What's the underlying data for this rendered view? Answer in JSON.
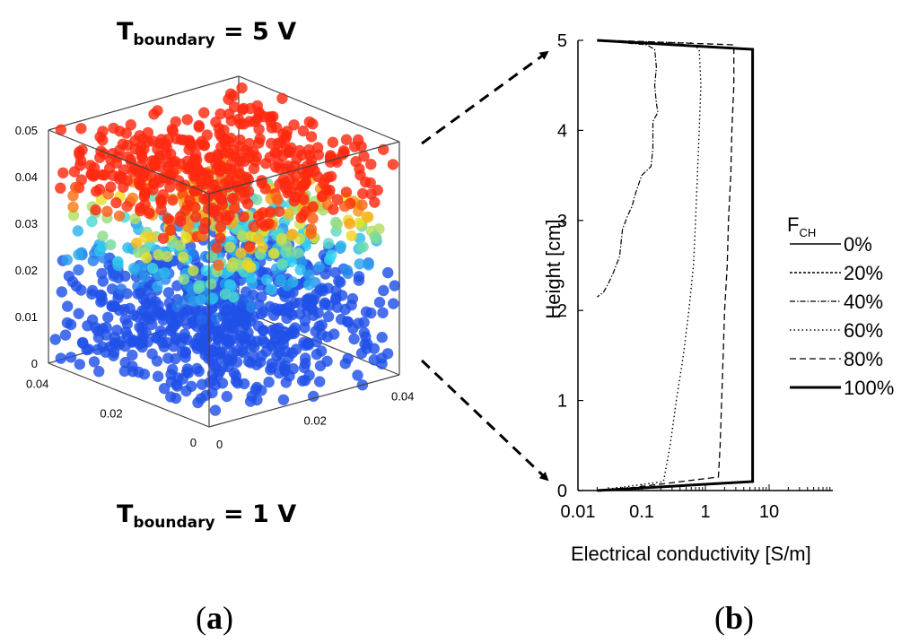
{
  "panel_a": {
    "label": "a",
    "top_boundary": {
      "symbol": "T",
      "subscript": "boundary",
      "value": "= 5 V"
    },
    "bottom_boundary": {
      "symbol": "T",
      "subscript": "boundary",
      "value": "= 1 V"
    },
    "z_ticks": [
      "0",
      "0.01",
      "0.02",
      "0.03",
      "0.04",
      "0.05"
    ],
    "left_depth_ticks": [
      "0",
      "0.02",
      "0.04"
    ],
    "right_depth_ticks": [
      "0",
      "0.02",
      "0.04"
    ],
    "layer_colors": {
      "top": "#ff2a10",
      "mid_warm": "#f0e020",
      "mid_cyan": "#30d8f0",
      "bottom": "#2050e8"
    }
  },
  "panel_b": {
    "label": "b"
  },
  "chart_data": {
    "type": "line",
    "title": "",
    "xlabel": "Electrical conductivity [S/m]",
    "ylabel": "Height [cm]",
    "xscale": "log",
    "xlim": [
      0.01,
      100
    ],
    "ylim": [
      0,
      5
    ],
    "x_tick_labels": [
      "0.01",
      "0.1",
      "1",
      "10"
    ],
    "y_tick_labels": [
      "0",
      "1",
      "2",
      "3",
      "4",
      "5"
    ],
    "legend": {
      "title": "F",
      "title_subscript": "CH",
      "placement": "right",
      "entries": [
        "0%",
        "20%",
        "40%",
        "60%",
        "80%",
        "100%"
      ]
    },
    "series": [
      {
        "name": "0%",
        "points": [
          [
            0.02,
            0
          ],
          [
            0.02,
            0
          ]
        ]
      },
      {
        "name": "20%",
        "points": [
          [
            0.02,
            5
          ],
          [
            0.02,
            5
          ]
        ]
      },
      {
        "name": "40%",
        "points": [
          [
            0.02,
            5
          ],
          [
            0.12,
            4.95
          ],
          [
            0.16,
            4.9
          ],
          [
            0.17,
            4.7
          ],
          [
            0.16,
            4.5
          ],
          [
            0.17,
            4.3
          ],
          [
            0.18,
            4.2
          ],
          [
            0.15,
            4.1
          ],
          [
            0.15,
            3.8
          ],
          [
            0.14,
            3.6
          ],
          [
            0.1,
            3.5
          ],
          [
            0.08,
            3.3
          ],
          [
            0.07,
            3.15
          ],
          [
            0.06,
            3.05
          ],
          [
            0.05,
            2.9
          ],
          [
            0.045,
            2.6
          ],
          [
            0.035,
            2.4
          ],
          [
            0.03,
            2.3
          ],
          [
            0.025,
            2.2
          ],
          [
            0.02,
            2.15
          ]
        ]
      },
      {
        "name": "60%",
        "points": [
          [
            0.02,
            5
          ],
          [
            0.6,
            4.97
          ],
          [
            0.8,
            4.9
          ],
          [
            0.85,
            4.5
          ],
          [
            0.8,
            4.0
          ],
          [
            0.75,
            3.5
          ],
          [
            0.7,
            3.0
          ],
          [
            0.65,
            2.5
          ],
          [
            0.55,
            2.0
          ],
          [
            0.45,
            1.5
          ],
          [
            0.35,
            1.0
          ],
          [
            0.28,
            0.5
          ],
          [
            0.22,
            0.1
          ],
          [
            0.02,
            0
          ]
        ]
      },
      {
        "name": "80%",
        "points": [
          [
            0.03,
            5
          ],
          [
            2.8,
            4.95
          ],
          [
            2.8,
            4.5
          ],
          [
            2.6,
            4.0
          ],
          [
            2.5,
            3.5
          ],
          [
            2.3,
            3.0
          ],
          [
            2.2,
            2.5
          ],
          [
            2.0,
            2.0
          ],
          [
            1.9,
            1.5
          ],
          [
            1.8,
            1.0
          ],
          [
            1.7,
            0.5
          ],
          [
            1.6,
            0.15
          ],
          [
            0.03,
            0
          ]
        ]
      },
      {
        "name": "100%",
        "points": [
          [
            0.02,
            5
          ],
          [
            5.5,
            4.9
          ],
          [
            5.5,
            0.1
          ],
          [
            0.02,
            0
          ]
        ]
      }
    ]
  }
}
